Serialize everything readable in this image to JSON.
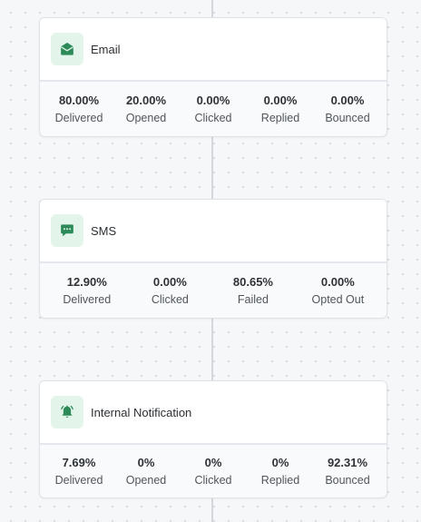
{
  "cards": [
    {
      "title": "Email",
      "icon": "envelope-open-icon",
      "stats": [
        {
          "value": "80.00%",
          "label": "Delivered"
        },
        {
          "value": "20.00%",
          "label": "Opened"
        },
        {
          "value": "0.00%",
          "label": "Clicked"
        },
        {
          "value": "0.00%",
          "label": "Replied"
        },
        {
          "value": "0.00%",
          "label": "Bounced"
        }
      ]
    },
    {
      "title": "SMS",
      "icon": "chat-bubble-icon",
      "stats": [
        {
          "value": "12.90%",
          "label": "Delivered"
        },
        {
          "value": "0.00%",
          "label": "Clicked"
        },
        {
          "value": "80.65%",
          "label": "Failed"
        },
        {
          "value": "0.00%",
          "label": "Opted Out"
        }
      ]
    },
    {
      "title": "Internal Notification",
      "icon": "bell-ringing-icon",
      "stats": [
        {
          "value": "7.69%",
          "label": "Delivered"
        },
        {
          "value": "0%",
          "label": "Opened"
        },
        {
          "value": "0%",
          "label": "Clicked"
        },
        {
          "value": "0%",
          "label": "Replied"
        },
        {
          "value": "92.31%",
          "label": "Bounced"
        }
      ]
    }
  ],
  "colors": {
    "icon_green": "#2b8a57",
    "icon_bg": "#e3f5ea"
  }
}
